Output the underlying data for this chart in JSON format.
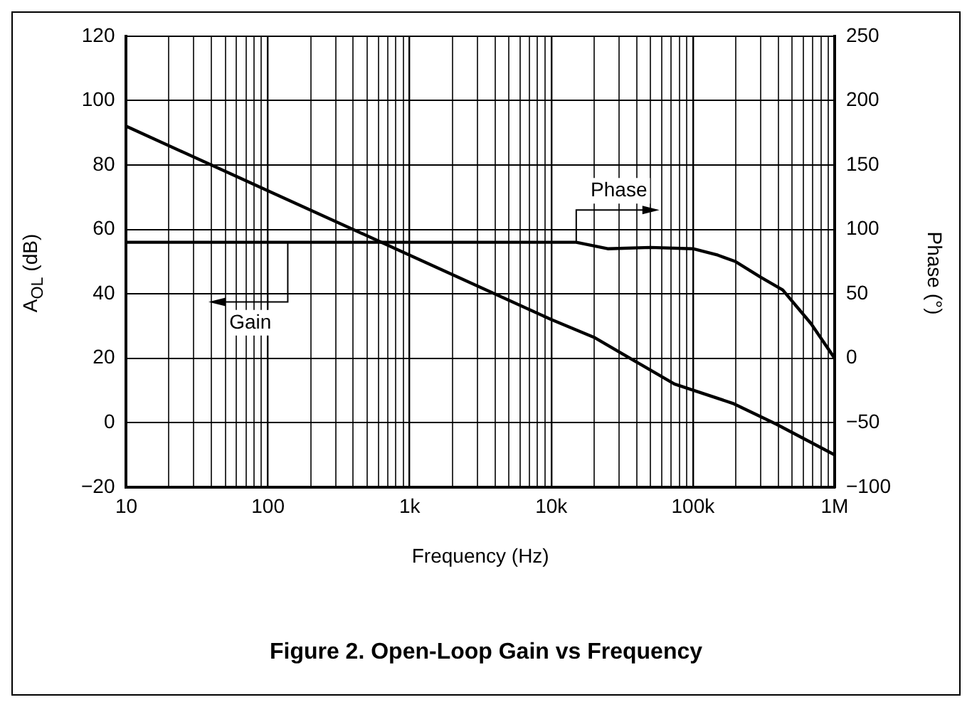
{
  "chart_data": {
    "type": "line",
    "title": "Figure 2. Open-Loop Gain vs Frequency",
    "xlabel": "Frequency (Hz)",
    "ylabel": "A$_{OL}$ (dB)",
    "y2label": "Phase (°)",
    "series": [
      {
        "color": "#000000",
        "x": [
          10,
          100,
          1000,
          10000,
          20000,
          43000,
          74000,
          191000,
          389000,
          1000000
        ],
        "values": [
          92,
          72,
          52,
          32,
          26.5,
          18,
          12,
          6,
          -0.5,
          -10
        ]
      },
      {
        "color": "#000000",
        "axis": "y2",
        "x": [
          10,
          1000,
          10000,
          15000,
          25000,
          50000,
          100000,
          150000,
          200000,
          300000,
          430000,
          680000,
          1000000
        ],
        "values": [
          90,
          90,
          90,
          90,
          85,
          86,
          85,
          80,
          75,
          63,
          53,
          27,
          0
        ]
      }
    ],
    "log": "x",
    "xlim": [
      10,
      1000000
    ],
    "xticks": [
      10,
      {
        "value": 20,
        "label": null
      },
      {
        "value": 30,
        "label": null
      },
      {
        "value": 40,
        "label": null
      },
      {
        "value": 50,
        "label": null
      },
      {
        "value": 60,
        "label": null
      },
      {
        "value": 70,
        "label": null
      },
      {
        "value": 80,
        "label": null
      },
      {
        "value": 90,
        "label": null
      },
      100,
      {
        "value": 200,
        "label": null
      },
      {
        "value": 300,
        "label": null
      },
      {
        "value": 400,
        "label": null
      },
      {
        "value": 500,
        "label": null
      },
      {
        "value": 600,
        "label": null
      },
      {
        "value": 700,
        "label": null
      },
      {
        "value": 800,
        "label": null
      },
      {
        "value": 900,
        "label": null
      },
      {
        "value": 1000,
        "label": "1k"
      },
      {
        "value": 2000,
        "label": null
      },
      {
        "value": 3000,
        "label": null
      },
      {
        "value": 4000,
        "label": null
      },
      {
        "value": 5000,
        "label": null
      },
      {
        "value": 6000,
        "label": null
      },
      {
        "value": 7000,
        "label": null
      },
      {
        "value": 8000,
        "label": null
      },
      {
        "value": 9000,
        "label": null
      },
      {
        "value": 10000,
        "label": "10k"
      },
      {
        "value": 20000,
        "label": null
      },
      {
        "value": 30000,
        "label": null
      },
      {
        "value": 40000,
        "label": null
      },
      {
        "value": 50000,
        "label": null
      },
      {
        "value": 60000,
        "label": null
      },
      {
        "value": 70000,
        "label": null
      },
      {
        "value": 80000,
        "label": null
      },
      {
        "value": 90000,
        "label": null
      },
      {
        "value": 100000,
        "label": "100k"
      },
      {
        "value": 200000,
        "label": null
      },
      {
        "value": 300000,
        "label": null
      },
      {
        "value": 400000,
        "label": null
      },
      {
        "value": 500000,
        "label": null
      },
      {
        "value": 600000,
        "label": null
      },
      {
        "value": 700000,
        "label": null
      },
      {
        "value": 800000,
        "label": null
      },
      {
        "value": 900000,
        "label": null
      },
      {
        "value": 1000000,
        "label": "1M"
      }
    ],
    "ylim": [
      -20,
      120
    ],
    "yticks": [
      {
        "value": -20,
        "label": "−20"
      },
      0,
      20,
      40,
      60,
      80,
      100,
      120
    ],
    "y2lim": [
      -100,
      250
    ],
    "y2ticks": [
      {
        "value": -100,
        "label": "−100"
      },
      {
        "value": -50,
        "label": "−50"
      },
      0,
      50,
      100,
      150,
      200,
      250
    ],
    "annotations": [
      "Gain",
      "Phase"
    ],
    "grid": true,
    "legend": false,
    "marker": "none",
    "line_style": "solid"
  }
}
